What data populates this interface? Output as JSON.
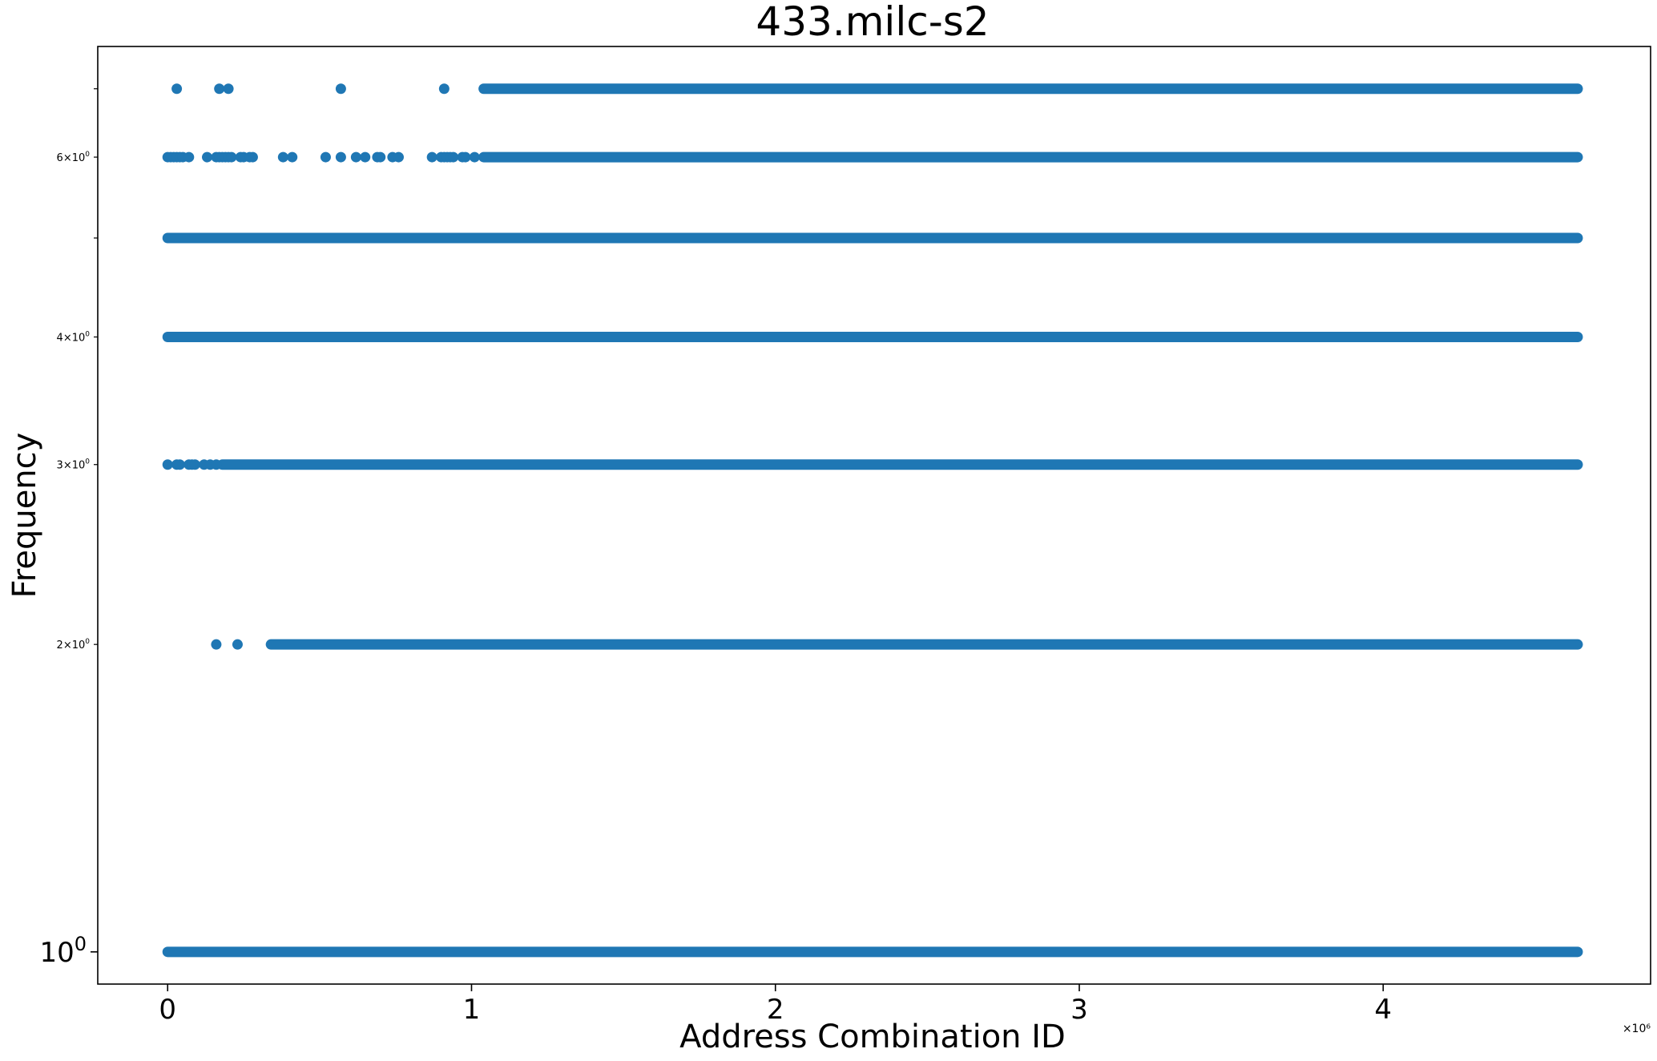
{
  "chart_data": {
    "type": "scatter",
    "title": "433.milc-s2",
    "xlabel": "Address Combination ID",
    "ylabel": "Frequency",
    "x_scale_label": "×10⁶",
    "xlim": [
      -0.23,
      4.88
    ],
    "ylim": [
      0.93,
      7.7
    ],
    "y_scale": "log",
    "grid": false,
    "legend": "none",
    "marker_color": "#1f77b4",
    "x_ticks": [
      {
        "value": 0,
        "label": "0"
      },
      {
        "value": 1,
        "label": "1"
      },
      {
        "value": 2,
        "label": "2"
      },
      {
        "value": 3,
        "label": "3"
      },
      {
        "value": 4,
        "label": "4"
      }
    ],
    "y_major_ticks": [
      {
        "value": 1,
        "base": "10",
        "exp": "0"
      }
    ],
    "y_minor_ticks": [
      {
        "value": 2,
        "mant": "2",
        "base": "10",
        "exp": "0"
      },
      {
        "value": 3,
        "mant": "3",
        "base": "10",
        "exp": "0"
      },
      {
        "value": 4,
        "mant": "4",
        "base": "10",
        "exp": "0"
      },
      {
        "value": 5,
        "mant": "",
        "base": "",
        "exp": ""
      },
      {
        "value": 6,
        "mant": "6",
        "base": "10",
        "exp": "0"
      },
      {
        "value": 7,
        "mant": "",
        "base": "",
        "exp": ""
      }
    ],
    "series": [
      {
        "y": 1,
        "bands": [
          [
            0.0,
            4.64
          ]
        ],
        "points": []
      },
      {
        "y": 2,
        "bands": [
          [
            0.34,
            4.64
          ]
        ],
        "points": [
          0.16,
          0.23
        ]
      },
      {
        "y": 3,
        "bands": [
          [
            0.18,
            4.64
          ]
        ],
        "points": [
          0.0,
          0.03,
          0.04,
          0.07,
          0.08,
          0.09,
          0.12,
          0.14,
          0.16
        ]
      },
      {
        "y": 4,
        "bands": [
          [
            0.0,
            4.64
          ]
        ],
        "points": []
      },
      {
        "y": 5,
        "bands": [
          [
            0.0,
            4.64
          ]
        ],
        "points": []
      },
      {
        "y": 6,
        "bands": [
          [
            1.04,
            4.64
          ]
        ],
        "points": [
          0.0,
          0.01,
          0.02,
          0.03,
          0.04,
          0.05,
          0.07,
          0.13,
          0.16,
          0.17,
          0.18,
          0.19,
          0.2,
          0.21,
          0.24,
          0.25,
          0.27,
          0.28,
          0.38,
          0.41,
          0.52,
          0.57,
          0.62,
          0.65,
          0.69,
          0.7,
          0.74,
          0.76,
          0.87,
          0.9,
          0.91,
          0.92,
          0.93,
          0.94,
          0.97,
          0.98,
          1.01
        ]
      },
      {
        "y": 7,
        "bands": [
          [
            1.04,
            4.64
          ]
        ],
        "points": [
          0.03,
          0.17,
          0.2,
          0.57,
          0.91
        ]
      }
    ]
  }
}
